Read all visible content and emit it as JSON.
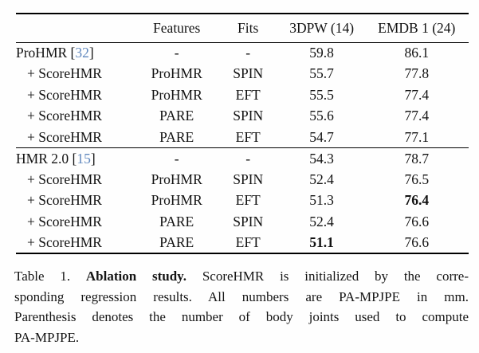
{
  "table": {
    "columns": [
      "",
      "Features",
      "Fits",
      "3DPW (14)",
      "EMDB 1 (24)"
    ],
    "groups": [
      {
        "rows": [
          {
            "label": "ProHMR",
            "cite": "32",
            "indent": false,
            "features": "-",
            "fits": "-",
            "dpw": "59.8",
            "emdb": "86.1",
            "dpw_bold": false,
            "emdb_bold": false
          },
          {
            "label": "+ ScoreHMR",
            "cite": null,
            "indent": true,
            "features": "ProHMR",
            "fits": "SPIN",
            "dpw": "55.7",
            "emdb": "77.8",
            "dpw_bold": false,
            "emdb_bold": false
          },
          {
            "label": "+ ScoreHMR",
            "cite": null,
            "indent": true,
            "features": "ProHMR",
            "fits": "EFT",
            "dpw": "55.5",
            "emdb": "77.4",
            "dpw_bold": false,
            "emdb_bold": false
          },
          {
            "label": "+ ScoreHMR",
            "cite": null,
            "indent": true,
            "features": "PARE",
            "fits": "SPIN",
            "dpw": "55.6",
            "emdb": "77.4",
            "dpw_bold": false,
            "emdb_bold": false
          },
          {
            "label": "+ ScoreHMR",
            "cite": null,
            "indent": true,
            "features": "PARE",
            "fits": "EFT",
            "dpw": "54.7",
            "emdb": "77.1",
            "dpw_bold": false,
            "emdb_bold": false
          }
        ]
      },
      {
        "rows": [
          {
            "label": "HMR 2.0",
            "cite": "15",
            "indent": false,
            "features": "-",
            "fits": "-",
            "dpw": "54.3",
            "emdb": "78.7",
            "dpw_bold": false,
            "emdb_bold": false
          },
          {
            "label": "+ ScoreHMR",
            "cite": null,
            "indent": true,
            "features": "ProHMR",
            "fits": "SPIN",
            "dpw": "52.4",
            "emdb": "76.5",
            "dpw_bold": false,
            "emdb_bold": false
          },
          {
            "label": "+ ScoreHMR",
            "cite": null,
            "indent": true,
            "features": "ProHMR",
            "fits": "EFT",
            "dpw": "51.3",
            "emdb": "76.4",
            "dpw_bold": false,
            "emdb_bold": true
          },
          {
            "label": "+ ScoreHMR",
            "cite": null,
            "indent": true,
            "features": "PARE",
            "fits": "SPIN",
            "dpw": "52.4",
            "emdb": "76.6",
            "dpw_bold": false,
            "emdb_bold": false
          },
          {
            "label": "+ ScoreHMR",
            "cite": null,
            "indent": true,
            "features": "PARE",
            "fits": "EFT",
            "dpw": "51.1",
            "emdb": "76.6",
            "dpw_bold": true,
            "emdb_bold": false
          }
        ]
      }
    ],
    "cite_color": "#5f87bd"
  },
  "caption": {
    "lines": [
      {
        "segments": [
          {
            "text": "Table 1. ",
            "bold": false
          },
          {
            "text": "Ablation study.",
            "bold": true
          },
          {
            "text": " ScoreHMR is initialized by the corre-",
            "bold": false
          }
        ],
        "last": false
      },
      {
        "segments": [
          {
            "text": "sponding regression results. All numbers are PA-MPJPE in mm.",
            "bold": false
          }
        ],
        "last": false
      },
      {
        "segments": [
          {
            "text": "Parenthesis denotes the number of body joints used to compute",
            "bold": false
          }
        ],
        "last": false
      },
      {
        "segments": [
          {
            "text": "PA-MPJPE.",
            "bold": false
          }
        ],
        "last": true
      }
    ]
  }
}
